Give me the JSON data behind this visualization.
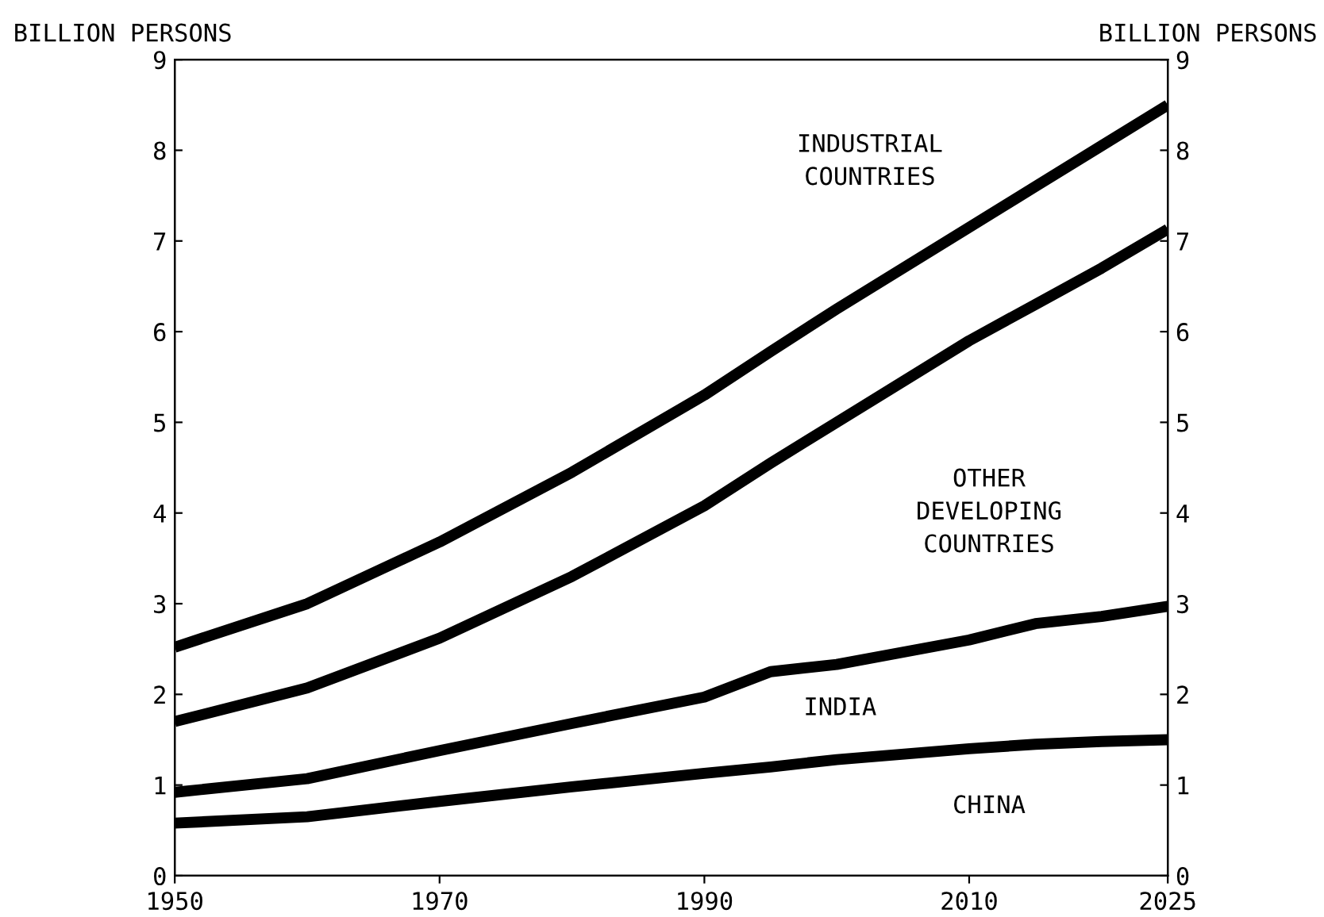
{
  "chart_data": {
    "type": "line",
    "ylabel": "BILLION PERSONS",
    "y2label": "BILLION PERSONS",
    "x": [
      1950,
      1960,
      1970,
      1980,
      1990,
      1995,
      2000,
      2010,
      2015,
      2020,
      2025
    ],
    "series": [
      {
        "color": "#000000",
        "values": [
          0.58,
          0.65,
          0.82,
          0.98,
          1.13,
          1.2,
          1.28,
          1.4,
          1.45,
          1.48,
          1.5
        ]
      },
      {
        "color": "#000000",
        "values": [
          0.92,
          1.07,
          1.38,
          1.68,
          1.97,
          2.25,
          2.33,
          2.6,
          2.78,
          2.86,
          2.97
        ]
      },
      {
        "color": "#000000",
        "values": [
          1.7,
          2.07,
          2.62,
          3.3,
          4.08,
          4.55,
          5.0,
          5.9,
          6.3,
          6.7,
          7.13
        ]
      },
      {
        "color": "#000000",
        "values": [
          2.52,
          3.0,
          3.68,
          4.45,
          5.3,
          5.78,
          6.25,
          7.15,
          7.6,
          8.05,
          8.5
        ]
      }
    ],
    "xlim": [
      1950,
      2025
    ],
    "xticks": [
      1950,
      1970,
      1990,
      2010,
      2025
    ],
    "ylim": [
      0,
      9
    ],
    "yticks": [
      0,
      1,
      2,
      3,
      4,
      5,
      6,
      7,
      8,
      9
    ],
    "y2lim": [
      0,
      9
    ],
    "y2ticks": [
      0,
      1,
      2,
      3,
      4,
      5,
      6,
      7,
      8,
      9
    ],
    "annotations": [
      "CHINA",
      "INDIA",
      "OTHER\nDEVELOPING\nCOUNTRIES",
      "INDUSTRIAL\nCOUNTRIES"
    ],
    "grid": false,
    "legend": false,
    "marker": "none",
    "line_style": "solid"
  }
}
